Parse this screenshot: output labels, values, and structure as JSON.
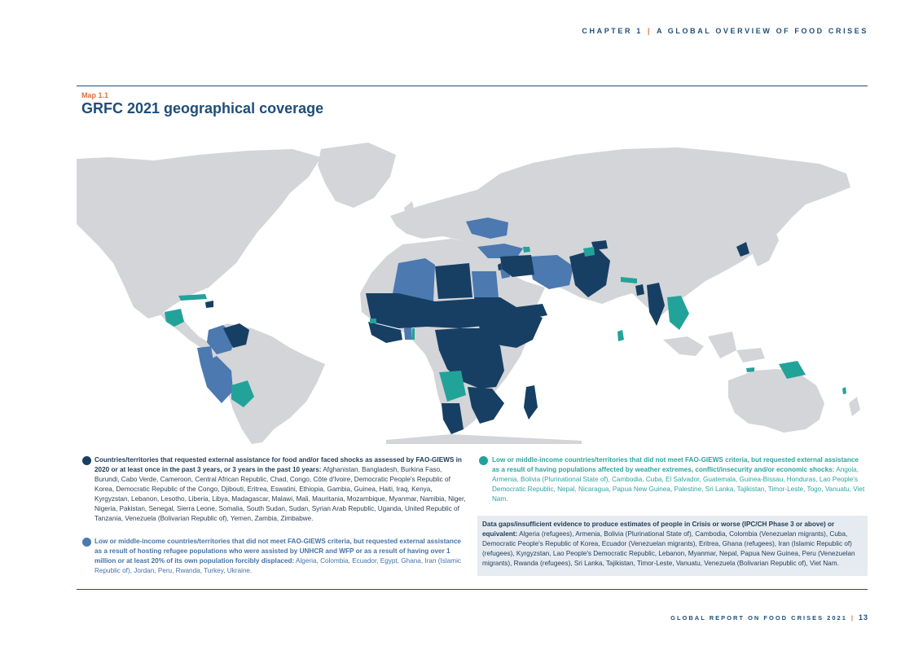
{
  "header": {
    "chapter": "CHAPTER 1",
    "separator": "|",
    "subtitle": "A GLOBAL OVERVIEW OF FOOD CRISES"
  },
  "map": {
    "label": "Map 1.1",
    "title": "GRFC 2021 geographical coverage",
    "colors": {
      "land": "#d3d5d8",
      "ocean": "#ffffff",
      "category_1": "#173f63",
      "category_2": "#4b79b0",
      "category_3": "#22a39a"
    },
    "regions": [
      {
        "name": "Ukraine",
        "category": 2
      },
      {
        "name": "Turkey",
        "category": 2
      },
      {
        "name": "Iran",
        "category": 2
      },
      {
        "name": "Afghanistan",
        "category": 1
      },
      {
        "name": "Pakistan",
        "category": 1
      },
      {
        "name": "Myanmar",
        "category": 1
      },
      {
        "name": "Democratic People's Republic of Korea",
        "category": 1
      },
      {
        "name": "Algeria",
        "category": 2
      },
      {
        "name": "Egypt",
        "category": 2
      },
      {
        "name": "Libya",
        "category": 1
      },
      {
        "name": "Sahel & West Africa",
        "category": 1
      },
      {
        "name": "East & Central Africa",
        "category": 1
      },
      {
        "name": "Yemen",
        "category": 1
      },
      {
        "name": "Angola",
        "category": 3
      },
      {
        "name": "Namibia",
        "category": 1
      },
      {
        "name": "Madagascar",
        "category": 1
      },
      {
        "name": "Venezuela",
        "category": 1
      },
      {
        "name": "Colombia",
        "category": 2
      },
      {
        "name": "Ecuador",
        "category": 2
      },
      {
        "name": "Peru",
        "category": 2
      },
      {
        "name": "Bolivia",
        "category": 3
      },
      {
        "name": "Central America",
        "category": 3
      },
      {
        "name": "Cuba",
        "category": 3
      },
      {
        "name": "Haiti",
        "category": 1
      },
      {
        "name": "Syria",
        "category": 1
      },
      {
        "name": "Lebanon",
        "category": 1
      },
      {
        "name": "Jordan",
        "category": 2
      },
      {
        "name": "Nepal",
        "category": 3
      },
      {
        "name": "Cambodia / Lao / Viet Nam",
        "category": 3
      },
      {
        "name": "Papua New Guinea",
        "category": 3
      },
      {
        "name": "Sri Lanka",
        "category": 3
      },
      {
        "name": "Tajikistan",
        "category": 3
      },
      {
        "name": "Kyrgyzstan",
        "category": 1
      }
    ]
  },
  "legend": {
    "item1": {
      "heading": "Countries/territories that requested external assistance for food and/or faced shocks as assessed by FAO-GIEWS in 2020 or at least once in the past 3 years, or 3 years in the past 10 years:",
      "countries": "Afghanistan, Bangladesh, Burkina Faso, Burundi, Cabo Verde, Cameroon, Central African Republic, Chad, Congo, Côte d'Ivoire, Democratic People's Republic of Korea, Democratic Republic of the Congo, Djibouti, Eritrea, Eswatini, Ethiopia, Gambia, Guinea, Haiti, Iraq, Kenya, Kyrgyzstan, Lebanon, Lesotho, Liberia, Libya, Madagascar, Malawi, Mali, Mauritania, Mozambique, Myanmar, Namibia, Niger, Nigeria, Pakistan, Senegal, Sierra Leone, Somalia, South Sudan, Sudan, Syrian Arab Republic, Uganda, United Republic of Tanzania, Venezuela (Bolivarian Republic of), Yemen, Zambia, Zimbabwe."
    },
    "item2": {
      "heading": "Low or middle-income countries/territories that did not meet FAO-GIEWS criteria, but requested external assistance as a result of hosting refugee populations who were assisted by UNHCR and WFP or as a result of having over 1 million or at least 20% of its own population forcibly displaced:",
      "countries": "Algeria, Colombia, Ecuador, Egypt, Ghana, Iran (Islamic Republic of), Jordan, Peru, Rwanda, Turkey, Ukraine."
    },
    "item3": {
      "heading": "Low or middle-income countries/territories that did not meet FAO-GIEWS criteria, but requested external assistance as a result of having populations affected by weather extremes, conflict/insecurity and/or economic shocks:",
      "countries": "Angola, Armenia, Bolivia (Plurinational State of), Cambodia, Cuba, El Salvador, Guatemala, Guinea-Bissau, Honduras, Lao People's Democratic Republic, Nepal, Nicaragua, Papua New Guinea, Palestine, Sri Lanka, Tajikistan, Timor-Leste, Togo, Vanuatu, Viet Nam."
    },
    "data_gaps": {
      "heading": "Data gaps/insufficient evidence to produce estimates of people in Crisis or worse (IPC/CH Phase 3 or above) or equivalent:",
      "countries": "Algeria (refugees), Armenia, Bolivia (Plurinational State of), Cambodia, Colombia (Venezuelan migrants), Cuba, Democratic People's Republic of Korea, Ecuador (Venezuelan migrants), Eritrea, Ghana (refugees), Iran (Islamic Republic of) (refugees), Kyrgyzstan, Lao People's Democratic Republic, Lebanon, Myanmar, Nepal, Papua New Guinea, Peru (Venezuelan migrants), Rwanda (refugees), Sri Lanka, Tajikistan, Timor-Leste, Vanuatu, Venezuela (Bolivarian Republic of), Viet Nam."
    }
  },
  "footer": {
    "report": "GLOBAL REPORT ON FOOD CRISES 2021",
    "separator": "|",
    "page": "13"
  }
}
